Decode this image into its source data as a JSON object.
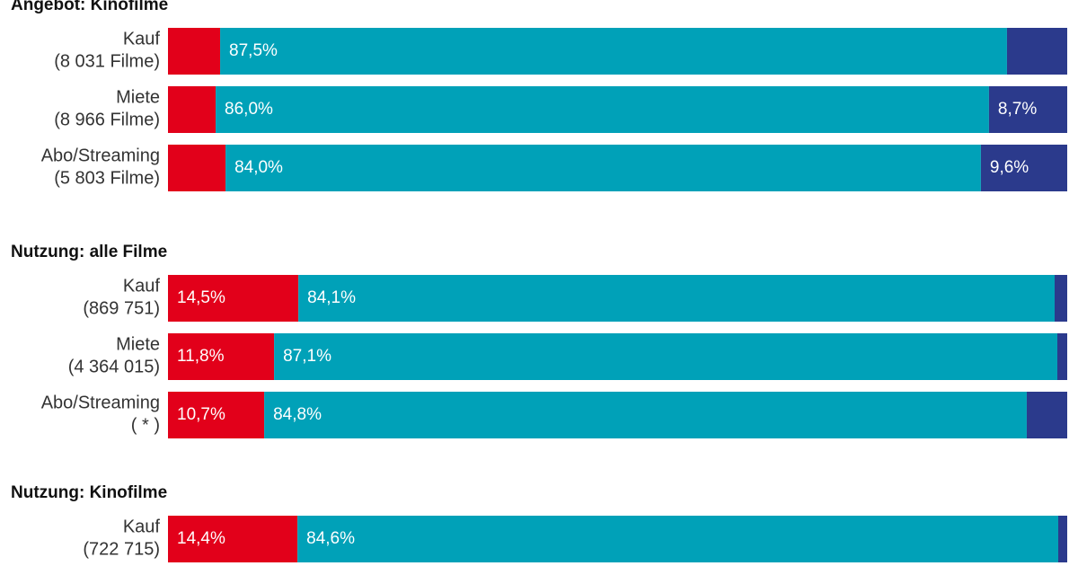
{
  "chart_data": [
    {
      "type": "stacked-bar-horizontal",
      "title": "Angebot: Kinofilme",
      "categories": [
        [
          "Kauf",
          "(8 031 Filme)"
        ],
        [
          "Miete",
          "(8 966 Filme)"
        ],
        [
          "Abo/Streaming",
          "(5 803 Filme)"
        ]
      ],
      "xlim": [
        0,
        100
      ],
      "series": [
        {
          "color": "#e2001a",
          "values": [
            5.8,
            5.3,
            6.4
          ],
          "value_labels": [
            null,
            null,
            null
          ]
        },
        {
          "color": "#00a1b8",
          "values": [
            87.5,
            86.0,
            84.0
          ],
          "value_labels": [
            "87,5%",
            "86,0%",
            "84,0%"
          ]
        },
        {
          "color": "#2b3a8c",
          "values": [
            6.7,
            8.7,
            9.6
          ],
          "value_labels": [
            null,
            "8,7%",
            "9,6%"
          ]
        }
      ]
    },
    {
      "type": "stacked-bar-horizontal",
      "title": "Nutzung: alle Filme",
      "categories": [
        [
          "Kauf",
          "(869 751)"
        ],
        [
          "Miete",
          "(4 364 015)"
        ],
        [
          "Abo/Streaming",
          "( * )"
        ]
      ],
      "xlim": [
        0,
        100
      ],
      "series": [
        {
          "color": "#e2001a",
          "values": [
            14.5,
            11.8,
            10.7
          ],
          "value_labels": [
            "14,5%",
            "11,8%",
            "10,7%"
          ]
        },
        {
          "color": "#00a1b8",
          "values": [
            84.1,
            87.1,
            84.8
          ],
          "value_labels": [
            "84,1%",
            "87,1%",
            "84,8%"
          ]
        },
        {
          "color": "#2b3a8c",
          "values": [
            1.4,
            1.1,
            4.5
          ],
          "value_labels": [
            null,
            null,
            null
          ]
        }
      ]
    },
    {
      "type": "stacked-bar-horizontal",
      "title": "Nutzung: Kinofilme",
      "categories": [
        [
          "Kauf",
          "(722 715)"
        ]
      ],
      "xlim": [
        0,
        100
      ],
      "series": [
        {
          "color": "#e2001a",
          "values": [
            14.4
          ],
          "value_labels": [
            "14,4%"
          ]
        },
        {
          "color": "#00a1b8",
          "values": [
            84.6
          ],
          "value_labels": [
            "84,6%"
          ]
        },
        {
          "color": "#2b3a8c",
          "values": [
            1.0
          ],
          "value_labels": [
            null
          ]
        }
      ]
    }
  ]
}
